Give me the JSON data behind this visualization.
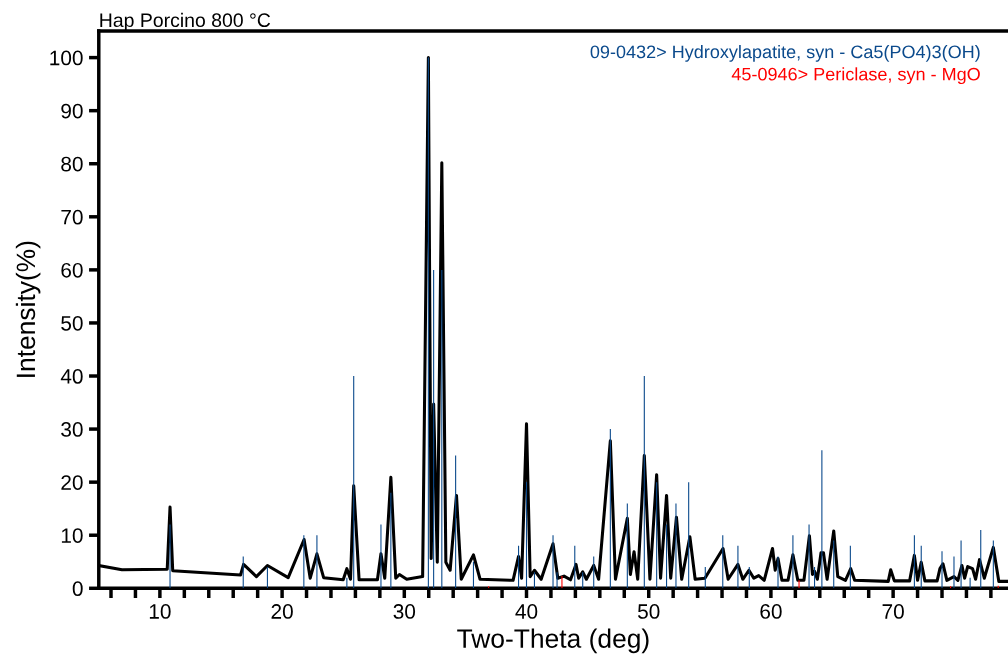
{
  "chart_data": {
    "type": "line",
    "title": "Hap Porcino 800 °C",
    "xlabel": "Two-Theta (deg)",
    "ylabel": "Intensity(%)",
    "xlim": [
      5,
      79.4
    ],
    "ylim": [
      0,
      105
    ],
    "xticks": [
      {
        "value": 6,
        "label": null
      },
      {
        "value": 8,
        "label": null
      },
      10,
      {
        "value": 12,
        "label": null
      },
      {
        "value": 14,
        "label": null
      },
      {
        "value": 16,
        "label": null
      },
      {
        "value": 18,
        "label": null
      },
      20,
      {
        "value": 22,
        "label": null
      },
      {
        "value": 24,
        "label": null
      },
      {
        "value": 26,
        "label": null
      },
      {
        "value": 28,
        "label": null
      },
      30,
      {
        "value": 32,
        "label": null
      },
      {
        "value": 34,
        "label": null
      },
      {
        "value": 36,
        "label": null
      },
      {
        "value": 38,
        "label": null
      },
      40,
      {
        "value": 42,
        "label": null
      },
      {
        "value": 44,
        "label": null
      },
      {
        "value": 46,
        "label": null
      },
      {
        "value": 48,
        "label": null
      },
      50,
      {
        "value": 52,
        "label": null
      },
      {
        "value": 54,
        "label": null
      },
      {
        "value": 56,
        "label": null
      },
      {
        "value": 58,
        "label": null
      },
      60,
      {
        "value": 62,
        "label": null
      },
      {
        "value": 64,
        "label": null
      },
      {
        "value": 66,
        "label": null
      },
      {
        "value": 68,
        "label": null
      },
      70,
      {
        "value": 72,
        "label": null
      },
      {
        "value": 74,
        "label": null
      },
      {
        "value": 76,
        "label": null
      },
      {
        "value": 78,
        "label": null
      }
    ],
    "yticks": [
      0,
      10,
      20,
      30,
      40,
      50,
      60,
      70,
      80,
      90,
      100
    ],
    "grid": false,
    "legend": "top right",
    "marker": "none",
    "line_style": "solid",
    "series": [
      {
        "color": "#000000",
        "x": [
          5.0,
          6.9,
          10.6,
          10.83,
          11.05,
          16.6,
          16.85,
          17.9,
          18.8,
          20.5,
          21.8,
          22.3,
          22.85,
          23.4,
          25.0,
          25.3,
          25.6,
          25.86,
          26.3,
          27.8,
          28.09,
          28.4,
          28.9,
          29.3,
          29.6,
          30.2,
          31.5,
          31.97,
          32.2,
          32.4,
          32.7,
          33.07,
          33.4,
          33.75,
          34.27,
          34.66,
          35.66,
          36.2,
          38.9,
          39.35,
          39.6,
          40.0,
          40.3,
          40.65,
          41.2,
          42.17,
          42.56,
          43.07,
          43.6,
          44.05,
          44.27,
          44.6,
          44.9,
          45.5,
          45.9,
          46.86,
          47.28,
          48.25,
          48.5,
          48.8,
          49.1,
          49.64,
          50.1,
          50.65,
          50.97,
          51.46,
          51.8,
          52.27,
          52.7,
          53.37,
          53.8,
          54.6,
          56.08,
          56.5,
          57.3,
          57.7,
          58.2,
          58.6,
          59.0,
          59.45,
          60.13,
          60.35,
          60.58,
          60.9,
          61.4,
          61.8,
          62.2,
          62.7,
          63.15,
          63.4,
          63.57,
          63.8,
          64.1,
          64.3,
          64.6,
          65.14,
          65.47,
          66.1,
          66.53,
          66.85,
          69.6,
          69.8,
          70.1,
          71.35,
          71.74,
          72.0,
          72.3,
          72.6,
          73.6,
          73.83,
          74.08,
          74.4,
          74.98,
          75.3,
          75.63,
          75.85,
          76.1,
          76.5,
          76.75,
          77.07,
          77.46,
          78.2,
          78.65,
          79.4
        ],
        "values": [
          4.3,
          3.5,
          3.6,
          15.3,
          3.3,
          2.5,
          4.5,
          2.2,
          4.3,
          2.0,
          9.2,
          1.9,
          6.5,
          2.0,
          1.6,
          3.7,
          1.7,
          19.3,
          1.6,
          1.6,
          6.5,
          1.9,
          20.9,
          1.9,
          2.6,
          1.7,
          2.2,
          100,
          5.6,
          34.7,
          4.9,
          80.2,
          4.9,
          3.4,
          17.5,
          1.7,
          6.3,
          1.7,
          1.5,
          6.0,
          1.9,
          31.0,
          2.2,
          3.4,
          1.7,
          8.4,
          1.9,
          2.3,
          1.6,
          4.5,
          1.9,
          3.1,
          1.7,
          4.3,
          1.7,
          27.8,
          1.7,
          13.2,
          2.6,
          6.9,
          1.7,
          25.0,
          1.7,
          21.4,
          1.9,
          17.5,
          1.9,
          13.4,
          1.7,
          9.7,
          1.7,
          1.9,
          7.5,
          1.7,
          4.5,
          1.7,
          3.4,
          1.9,
          2.4,
          1.5,
          7.5,
          3.4,
          5.6,
          1.5,
          1.5,
          6.3,
          1.5,
          1.5,
          9.9,
          2.6,
          3.2,
          1.7,
          6.7,
          6.7,
          1.7,
          10.8,
          2.2,
          1.5,
          3.7,
          1.5,
          1.3,
          3.5,
          1.4,
          1.4,
          6.2,
          1.5,
          4.9,
          1.4,
          1.4,
          3.7,
          4.6,
          1.5,
          2.2,
          1.5,
          4.3,
          1.9,
          4.1,
          3.7,
          1.7,
          5.4,
          1.9,
          7.7,
          1.3,
          1.3
        ]
      },
      {
        "type": "bar",
        "name": "09-0432> Hydroxylapatite, syn - Ca5(PO4)3(OH)",
        "color": "#0b4a8c",
        "x": [
          10.83,
          16.82,
          18.8,
          21.78,
          22.85,
          25.3,
          25.86,
          28.09,
          28.9,
          31.97,
          32.4,
          33.07,
          34.2,
          35.66,
          39.35,
          40.0,
          40.65,
          42.17,
          42.5,
          43.95,
          44.6,
          45.5,
          46.86,
          48.25,
          49.64,
          50.65,
          51.46,
          52.23,
          53.27,
          54.63,
          56.06,
          57.3,
          58.23,
          60.58,
          61.8,
          63.12,
          63.57,
          64.17,
          65.14,
          66.5,
          71.74,
          72.3,
          74.0,
          74.98,
          75.56,
          76.3,
          77.17,
          78.2
        ],
        "values": [
          12,
          6,
          4,
          10,
          10,
          2,
          40,
          12,
          18,
          100,
          60,
          60,
          25,
          5,
          8,
          20,
          3,
          10,
          3,
          8,
          3,
          6,
          30,
          16,
          40,
          20,
          12,
          16,
          20,
          4,
          10,
          8,
          4,
          6,
          10,
          12,
          4,
          26,
          9,
          8,
          10,
          8,
          7,
          6,
          9,
          2,
          11,
          9
        ]
      },
      {
        "type": "bar",
        "name": "45-0946> Periclase, syn - MgO",
        "color": "#ff0000",
        "x": [
          36.9,
          42.9,
          62.3,
          74.7,
          78.6
        ],
        "values": [
          0.4,
          2.3,
          1.5,
          0.4,
          0.5
        ]
      }
    ]
  }
}
